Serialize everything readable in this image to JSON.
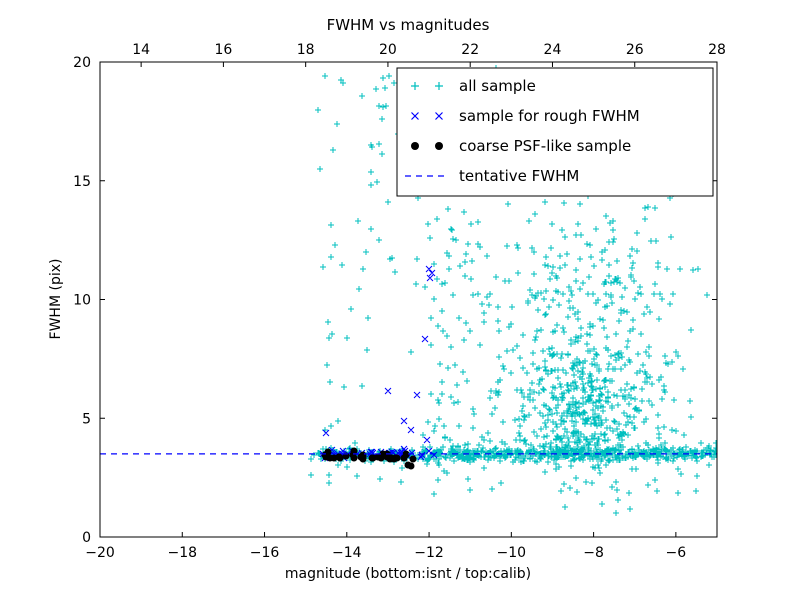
{
  "figure": {
    "title": "FWHM vs magnitudes",
    "xlabel": "magnitude (bottom:isnt / top:calib)",
    "ylabel": "FWHM (pix)"
  },
  "chart_data": {
    "type": "scatter",
    "title": "FWHM vs magnitudes",
    "xlabel": "magnitude (bottom:isnt / top:calib)",
    "ylabel": "FWHM (pix)",
    "xlim": [
      -20,
      -5
    ],
    "ylim": [
      0,
      20
    ],
    "x_ticks": [
      -20,
      -18,
      -16,
      -14,
      -12,
      -10,
      -8,
      -6
    ],
    "y_ticks": [
      0,
      5,
      10,
      15,
      20
    ],
    "top_ticks": [
      14,
      16,
      18,
      20,
      22,
      24,
      26,
      28
    ],
    "top_axis_offset": 33,
    "grid": false,
    "legend_position": "upper right",
    "tentative_fwhm": 3.5,
    "seed": 7,
    "colors": {
      "all_sample": "#00bfbf",
      "rough_fwhm_sample": "#0000ff",
      "psf_like_sample": "#000000",
      "tentative_line": "#0000ff"
    },
    "series": [
      {
        "name": "all sample",
        "marker": "plus",
        "color": "#00bfbf",
        "clusters": [
          {
            "dist": "uniform",
            "n": 70,
            "x": [
              -14.9,
              -12.2
            ],
            "y": [
              2.2,
              19.5
            ]
          },
          {
            "dist": "band",
            "n": 120,
            "x": [
              -14.8,
              -12.1
            ],
            "y": 3.5,
            "ysd": 0.15
          },
          {
            "dist": "band",
            "n": 500,
            "x": [
              -12.1,
              -5.0
            ],
            "y": 3.5,
            "ysd": 0.13
          },
          {
            "dist": "band",
            "n": 90,
            "x": [
              -12.1,
              -5.0
            ],
            "y": 3.6,
            "ysd": 0.45
          },
          {
            "dist": "uniform",
            "n": 160,
            "x": [
              -12.2,
              -5.1
            ],
            "y": [
              3.9,
              19.8
            ]
          },
          {
            "dist": "uniform",
            "n": 120,
            "x": [
              -9.8,
              -6.0
            ],
            "y": [
              4.0,
              13.0
            ]
          },
          {
            "dist": "gauss",
            "n": 320,
            "cx": -8.2,
            "cy": 5.3,
            "sx": 0.75,
            "sy": 1.3
          },
          {
            "dist": "gauss",
            "n": 130,
            "cx": -8.4,
            "cy": 8.3,
            "sx": 0.9,
            "sy": 2.0
          },
          {
            "dist": "uniform",
            "n": 60,
            "x": [
              -12.1,
              -10.2
            ],
            "y": [
              4.0,
              14.0
            ]
          },
          {
            "dist": "uniform",
            "n": 25,
            "x": [
              -12.0,
              -5.2
            ],
            "y": [
              1.8,
              3.0
            ]
          }
        ]
      },
      {
        "name": "sample for rough FWHM",
        "marker": "x",
        "color": "#0000ff",
        "points": [
          [
            -12.0,
            11.3
          ],
          [
            -11.92,
            11.1
          ],
          [
            -11.98,
            10.9
          ],
          [
            -12.1,
            8.35
          ],
          [
            -13.0,
            6.15
          ],
          [
            -12.3,
            6.0
          ],
          [
            -12.6,
            4.9
          ],
          [
            -12.45,
            4.5
          ],
          [
            -14.5,
            4.4
          ],
          [
            -12.05,
            4.1
          ]
        ],
        "clusters": [
          {
            "dist": "band",
            "n": 42,
            "x": [
              -14.6,
              -11.8
            ],
            "y": 3.5,
            "ysd": 0.09
          }
        ]
      },
      {
        "name": "coarse PSF-like sample",
        "marker": "dot",
        "color": "#000000",
        "points": [
          [
            -12.52,
            3.05
          ],
          [
            -12.44,
            2.98
          ],
          [
            -12.38,
            3.28
          ]
        ],
        "clusters": [
          {
            "dist": "band",
            "n": 30,
            "x": [
              -14.6,
              -12.5
            ],
            "y": 3.38,
            "ysd": 0.09
          },
          {
            "dist": "band",
            "n": 8,
            "x": [
              -13.6,
              -12.9
            ],
            "y": 3.45,
            "ysd": 0.06
          }
        ]
      },
      {
        "name": "tentative FWHM",
        "marker": "dashed-line",
        "color": "#0000ff",
        "y": 3.5
      }
    ]
  }
}
